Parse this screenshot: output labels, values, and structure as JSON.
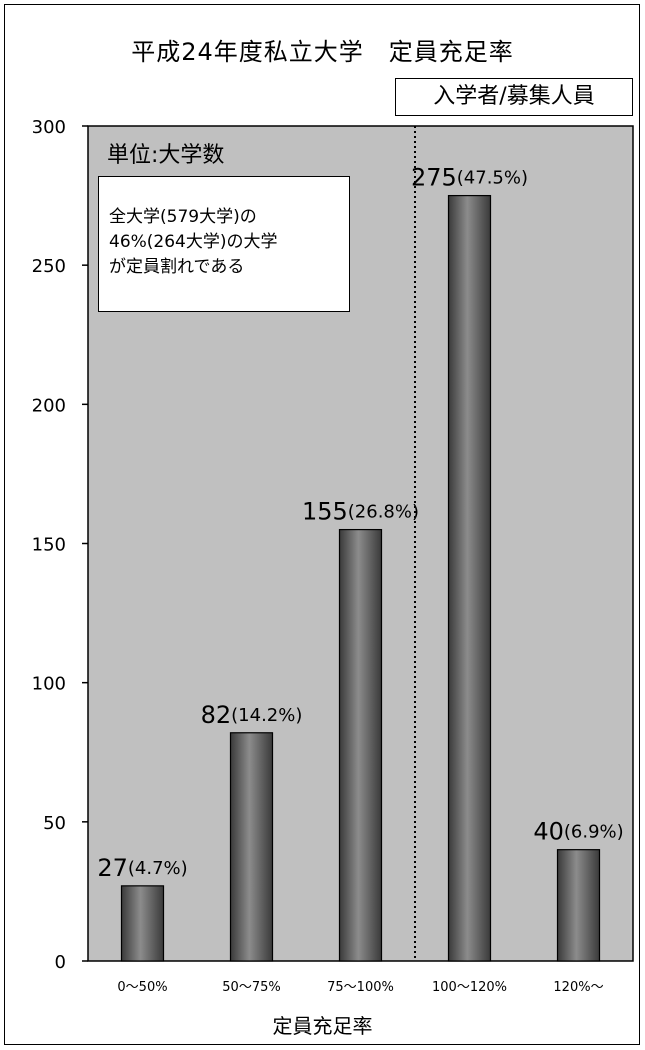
{
  "chart_data": {
    "type": "bar",
    "title": "平成24年度私立大学　定員充足率",
    "ratio_label": "入学者/募集人員",
    "unit_label": "単位:大学数",
    "note_lines": [
      "全大学(579大学)の",
      "46%(264大学)の大学",
      "が定員割れである"
    ],
    "xlabel": "定員充足率",
    "ylabel": "",
    "ylim": [
      0,
      300
    ],
    "yticks": [
      0,
      50,
      100,
      150,
      200,
      250,
      300
    ],
    "categories": [
      "0～50%",
      "50～75%",
      "75～100%",
      "100～120%",
      "120%～"
    ],
    "values": [
      27,
      82,
      155,
      275,
      40
    ],
    "value_labels": [
      "27",
      "82",
      "155",
      "275",
      "40"
    ],
    "percent_labels": [
      "(4.7%)",
      "(14.2%)",
      "(26.8%)",
      "(47.5%)",
      "(6.9%)"
    ],
    "grid": false,
    "divider_after_category": "75～100%",
    "colors": {
      "plot_background": "#c0c0c0",
      "bar_dark": "#3a3a3a",
      "bar_light": "#8c8c8c"
    }
  }
}
